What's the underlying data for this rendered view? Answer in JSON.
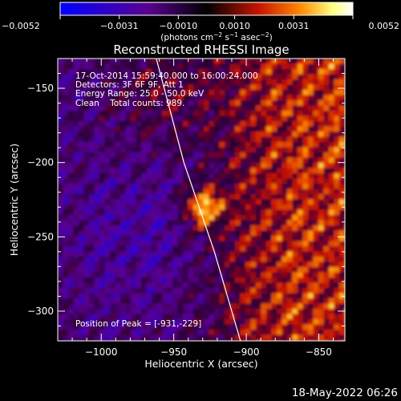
{
  "chart_data": {
    "type": "heatmap",
    "title": "Reconstructed RHESSI Image",
    "xlabel": "Heliocentric X (arcsec)",
    "ylabel": "Heliocentric Y (arcsec)",
    "xlim": [
      -1030,
      -832
    ],
    "ylim": [
      -320,
      -130
    ],
    "x_ticks": [
      -1000,
      -950,
      -900,
      -850
    ],
    "y_ticks": [
      -150,
      -200,
      -250,
      -300
    ],
    "x_tick_labels": [
      "−1000",
      "−950",
      "−900",
      "−850"
    ],
    "y_tick_labels": [
      "−150",
      "−200",
      "−250",
      "−300"
    ],
    "colorbar": {
      "ticks": [
        -0.0052,
        -0.0031,
        -0.001,
        0.001,
        0.0031,
        0.0052
      ],
      "tick_labels": [
        "−0.0052",
        "−0.0031",
        "−0.0010",
        "0.0010",
        "0.0031",
        "0.0052"
      ],
      "units_parts": [
        "(photons cm",
        "−2",
        " s",
        "−1",
        " asec",
        "−2",
        ")"
      ],
      "colors": [
        "#0000ff",
        "#5a0090",
        "#000000",
        "#c81400",
        "#ff8a00",
        "#ffff80",
        "#ffffff"
      ]
    },
    "annotations": [
      "17-Oct-2014 15:59:40.000 to 16:00:24.000",
      "Detectors: 3F 6F 9F, Att 1",
      "Energy Range: 25.0 - 50.0 keV",
      "Clean    Total counts: 989."
    ],
    "peak_label": "Position of Peak = [-931,-229]",
    "peak": [
      -931,
      -229
    ],
    "limb": [
      [
        -962,
        -130
      ],
      [
        -943,
        -200
      ],
      [
        -922,
        -260
      ],
      [
        -904,
        -320
      ]
    ]
  },
  "footer_timestamp": "18-May-2022 06:26"
}
